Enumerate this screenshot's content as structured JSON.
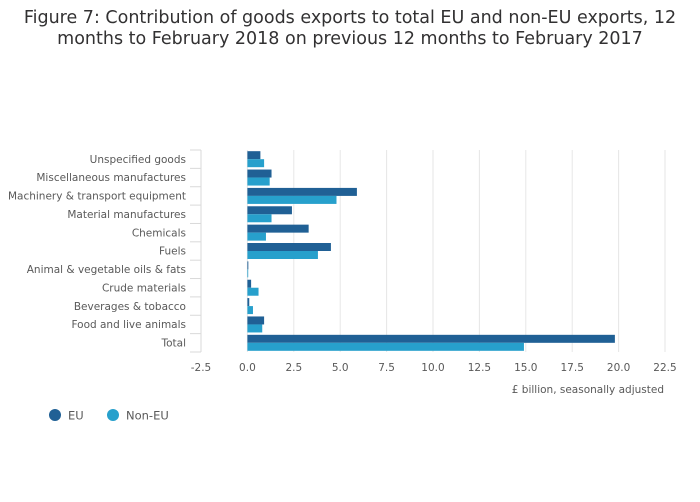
{
  "chart_data": {
    "type": "bar",
    "orientation": "horizontal",
    "title_lines": [
      "Figure 7: Contribution of goods exports to total EU and non-EU exports, 12",
      "months to February 2018 on previous 12 months to February 2017"
    ],
    "categories": [
      "Unspecified goods",
      "Miscellaneous manufactures",
      "Machinery & transport equipment",
      "Material manufactures",
      "Chemicals",
      "Fuels",
      "Animal & vegetable oils & fats",
      "Crude materials",
      "Beverages & tobacco",
      "Food and live animals",
      "Total"
    ],
    "series": [
      {
        "name": "EU",
        "color": "#206095",
        "values": [
          0.7,
          1.3,
          5.9,
          2.4,
          3.3,
          4.5,
          0.05,
          0.2,
          0.1,
          0.9,
          19.8
        ]
      },
      {
        "name": "Non-EU",
        "color": "#27a0cc",
        "values": [
          0.9,
          1.2,
          4.8,
          1.3,
          1.0,
          3.8,
          0.03,
          0.6,
          0.3,
          0.8,
          14.9
        ]
      }
    ],
    "xlim": [
      -2.5,
      22.5
    ],
    "x_ticks": [
      "-2.5",
      "0.0",
      "2.5",
      "5.0",
      "7.5",
      "10.0",
      "12.5",
      "15.0",
      "17.5",
      "20.0",
      "22.5"
    ],
    "xlabel": "£ billion, seasonally adjusted",
    "grid": true,
    "legend_position": "bottom-left"
  }
}
